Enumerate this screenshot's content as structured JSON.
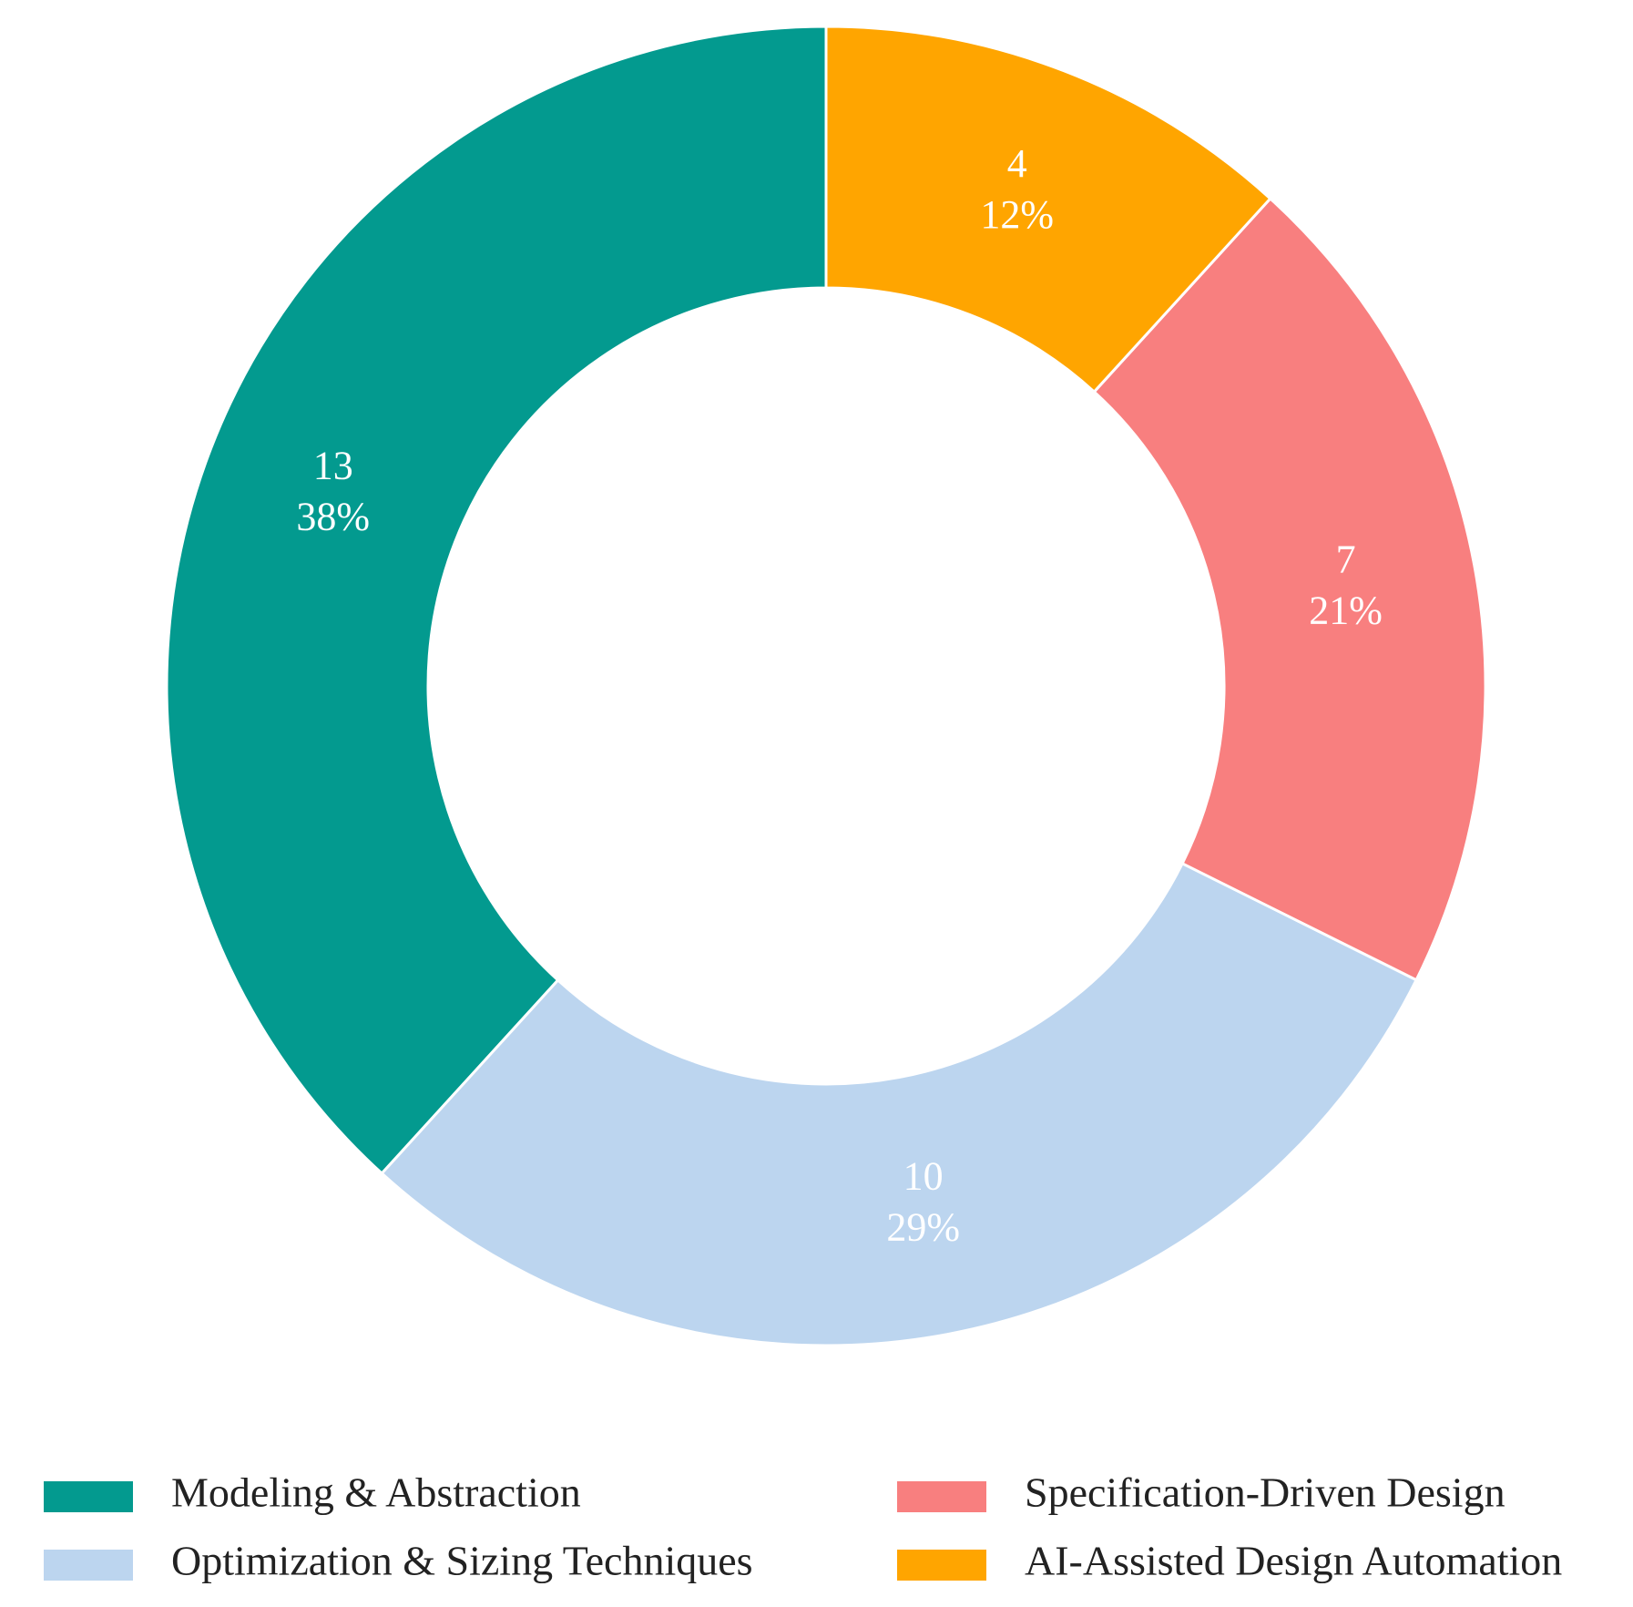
{
  "chart_data": {
    "type": "donut",
    "categories": [
      "Modeling & Abstraction",
      "Optimization & Sizing Techniques",
      "Specification-Driven Design",
      "AI-Assisted Design Automation"
    ],
    "values": [
      13,
      10,
      7,
      4
    ],
    "percent_labels": [
      "38%",
      "29%",
      "21%",
      "12%"
    ],
    "colors": [
      "#039a8f",
      "#bcd5ef",
      "#f87f7f",
      "#ffa500"
    ],
    "legend": "bottom"
  }
}
